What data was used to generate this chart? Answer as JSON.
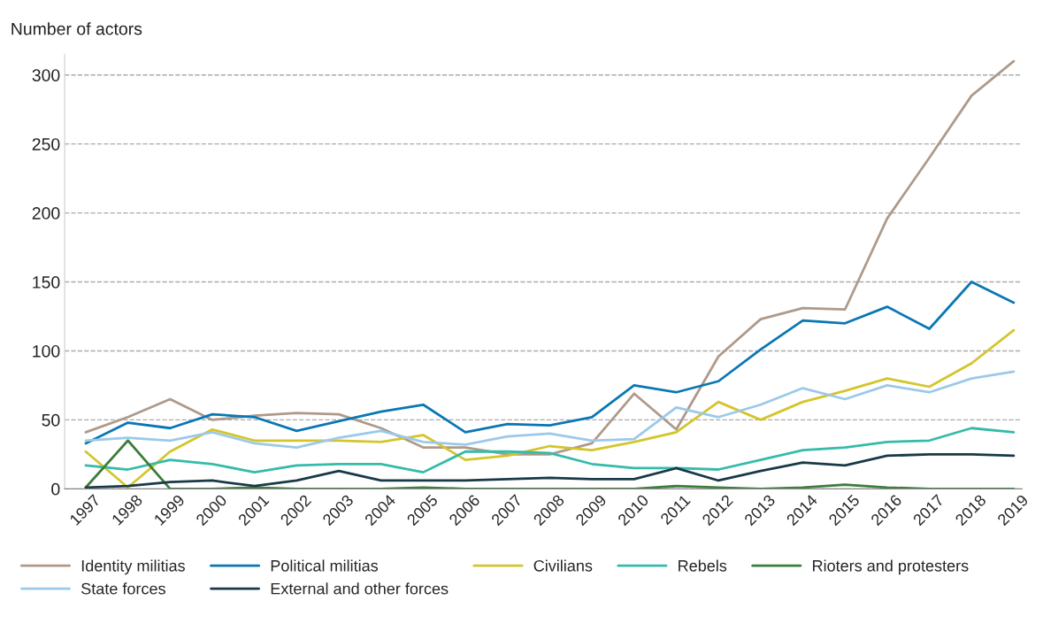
{
  "chart_data": {
    "type": "line",
    "ylabel": "Number of actors",
    "categories": [
      "1997",
      "1998",
      "1999",
      "2000",
      "2001",
      "2002",
      "2003",
      "2004",
      "2005",
      "2006",
      "2007",
      "2008",
      "2009",
      "2010",
      "2011",
      "2012",
      "2013",
      "2014",
      "2015",
      "2016",
      "2017",
      "2018",
      "2019"
    ],
    "series": [
      {
        "name": "Identity militias",
        "color": "#ae9a8a",
        "values": [
          41,
          52,
          65,
          50,
          53,
          55,
          54,
          44,
          30,
          30,
          25,
          25,
          33,
          69,
          43,
          96,
          123,
          131,
          130,
          196,
          240,
          285,
          310
        ]
      },
      {
        "name": "Political militias",
        "color": "#0a77b4",
        "values": [
          33,
          48,
          44,
          54,
          52,
          42,
          49,
          56,
          61,
          41,
          47,
          46,
          52,
          75,
          70,
          78,
          101,
          122,
          120,
          132,
          116,
          150,
          135
        ]
      },
      {
        "name": "Civilians",
        "color": "#d4c52c",
        "values": [
          27,
          1,
          27,
          43,
          35,
          35,
          35,
          34,
          39,
          21,
          24,
          31,
          28,
          34,
          41,
          63,
          50,
          63,
          71,
          80,
          74,
          91,
          115
        ]
      },
      {
        "name": "Rebels",
        "color": "#35bba9",
        "values": [
          17,
          14,
          21,
          18,
          12,
          17,
          18,
          18,
          12,
          27,
          27,
          26,
          18,
          15,
          15,
          14,
          21,
          28,
          30,
          34,
          35,
          44,
          41
        ]
      },
      {
        "name": "Rioters and protesters",
        "color": "#3b7d3a",
        "values": [
          1,
          35,
          0,
          0,
          1,
          0,
          0,
          0,
          1,
          0,
          0,
          0,
          0,
          0,
          2,
          1,
          0,
          1,
          3,
          1,
          0,
          0,
          0
        ]
      },
      {
        "name": "State forces",
        "color": "#9cc9ea",
        "values": [
          35,
          37,
          35,
          41,
          33,
          30,
          37,
          42,
          34,
          32,
          38,
          40,
          35,
          36,
          59,
          52,
          61,
          73,
          65,
          75,
          70,
          80,
          85
        ]
      },
      {
        "name": "External and other forces",
        "color": "#183a47",
        "values": [
          1,
          2,
          5,
          6,
          2,
          6,
          13,
          6,
          6,
          6,
          7,
          8,
          7,
          7,
          15,
          6,
          13,
          19,
          17,
          24,
          25,
          25,
          24
        ]
      }
    ],
    "ylim": [
      0,
      315
    ],
    "yticks": [
      0,
      50,
      100,
      150,
      200,
      250,
      300
    ],
    "grid": "y",
    "legend": "bottom",
    "line_style": "solid",
    "marker": "none"
  }
}
